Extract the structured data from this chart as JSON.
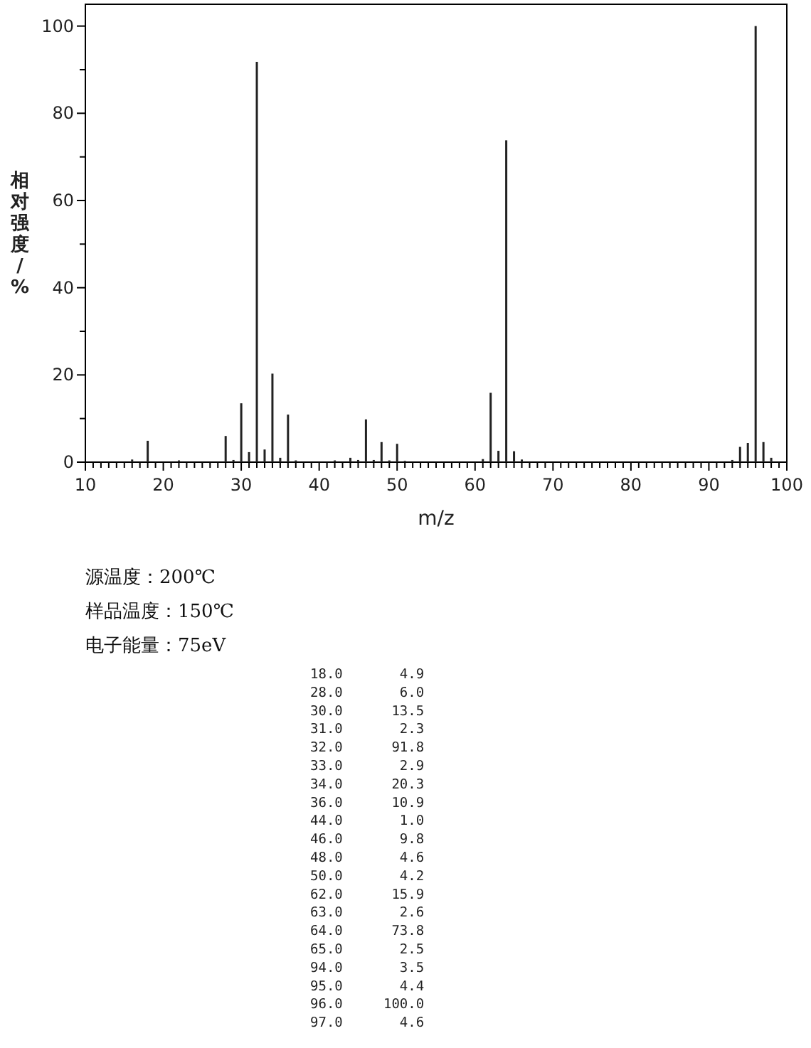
{
  "chart_data": [
    {
      "type": "bar",
      "xlabel": "m/z",
      "ylabel": "相对强度/%",
      "color": "#222222",
      "x": [
        16,
        18,
        22,
        28,
        29,
        30,
        31,
        32,
        33,
        34,
        35,
        36,
        37,
        42,
        44,
        45,
        46,
        47,
        48,
        49,
        50,
        51,
        61,
        62,
        63,
        64,
        65,
        66,
        93,
        94,
        95,
        96,
        97,
        98
      ],
      "values": [
        0.6,
        4.9,
        0.4,
        6.0,
        0.5,
        13.5,
        2.3,
        91.8,
        2.9,
        20.3,
        1.0,
        10.9,
        0.4,
        0.4,
        1.0,
        0.5,
        9.8,
        0.5,
        4.6,
        0.4,
        4.2,
        0.3,
        0.7,
        15.9,
        2.6,
        73.8,
        2.5,
        0.6,
        0.5,
        3.5,
        4.4,
        100.0,
        4.6,
        1.0
      ],
      "xlim": [
        10,
        100
      ],
      "ylim": [
        0,
        105
      ],
      "xticks": [
        10,
        {
          "value": 11,
          "label": null
        },
        {
          "value": 12,
          "label": null
        },
        {
          "value": 13,
          "label": null
        },
        {
          "value": 14,
          "label": null
        },
        {
          "value": 15,
          "label": null
        },
        {
          "value": 16,
          "label": null
        },
        {
          "value": 17,
          "label": null
        },
        {
          "value": 18,
          "label": null
        },
        {
          "value": 19,
          "label": null
        },
        20,
        {
          "value": 21,
          "label": null
        },
        {
          "value": 22,
          "label": null
        },
        {
          "value": 23,
          "label": null
        },
        {
          "value": 24,
          "label": null
        },
        {
          "value": 25,
          "label": null
        },
        {
          "value": 26,
          "label": null
        },
        {
          "value": 27,
          "label": null
        },
        {
          "value": 28,
          "label": null
        },
        {
          "value": 29,
          "label": null
        },
        30,
        {
          "value": 31,
          "label": null
        },
        {
          "value": 32,
          "label": null
        },
        {
          "value": 33,
          "label": null
        },
        {
          "value": 34,
          "label": null
        },
        {
          "value": 35,
          "label": null
        },
        {
          "value": 36,
          "label": null
        },
        {
          "value": 37,
          "label": null
        },
        {
          "value": 38,
          "label": null
        },
        {
          "value": 39,
          "label": null
        },
        40,
        {
          "value": 41,
          "label": null
        },
        {
          "value": 42,
          "label": null
        },
        {
          "value": 43,
          "label": null
        },
        {
          "value": 44,
          "label": null
        },
        {
          "value": 45,
          "label": null
        },
        {
          "value": 46,
          "label": null
        },
        {
          "value": 47,
          "label": null
        },
        {
          "value": 48,
          "label": null
        },
        {
          "value": 49,
          "label": null
        },
        50,
        {
          "value": 51,
          "label": null
        },
        {
          "value": 52,
          "label": null
        },
        {
          "value": 53,
          "label": null
        },
        {
          "value": 54,
          "label": null
        },
        {
          "value": 55,
          "label": null
        },
        {
          "value": 56,
          "label": null
        },
        {
          "value": 57,
          "label": null
        },
        {
          "value": 58,
          "label": null
        },
        {
          "value": 59,
          "label": null
        },
        60,
        {
          "value": 61,
          "label": null
        },
        {
          "value": 62,
          "label": null
        },
        {
          "value": 63,
          "label": null
        },
        {
          "value": 64,
          "label": null
        },
        {
          "value": 65,
          "label": null
        },
        {
          "value": 66,
          "label": null
        },
        {
          "value": 67,
          "label": null
        },
        {
          "value": 68,
          "label": null
        },
        {
          "value": 69,
          "label": null
        },
        70,
        {
          "value": 71,
          "label": null
        },
        {
          "value": 72,
          "label": null
        },
        {
          "value": 73,
          "label": null
        },
        {
          "value": 74,
          "label": null
        },
        {
          "value": 75,
          "label": null
        },
        {
          "value": 76,
          "label": null
        },
        {
          "value": 77,
          "label": null
        },
        {
          "value": 78,
          "label": null
        },
        {
          "value": 79,
          "label": null
        },
        80,
        {
          "value": 81,
          "label": null
        },
        {
          "value": 82,
          "label": null
        },
        {
          "value": 83,
          "label": null
        },
        {
          "value": 84,
          "label": null
        },
        {
          "value": 85,
          "label": null
        },
        {
          "value": 86,
          "label": null
        },
        {
          "value": 87,
          "label": null
        },
        {
          "value": 88,
          "label": null
        },
        {
          "value": 89,
          "label": null
        },
        90,
        {
          "value": 91,
          "label": null
        },
        {
          "value": 92,
          "label": null
        },
        {
          "value": 93,
          "label": null
        },
        {
          "value": 94,
          "label": null
        },
        {
          "value": 95,
          "label": null
        },
        {
          "value": 96,
          "label": null
        },
        {
          "value": 97,
          "label": null
        },
        {
          "value": 98,
          "label": null
        },
        {
          "value": 99,
          "label": null
        },
        100
      ],
      "yticks": [
        0,
        {
          "value": 10,
          "label": null
        },
        20,
        {
          "value": 30,
          "label": null
        },
        40,
        {
          "value": 50,
          "label": null
        },
        60,
        {
          "value": 70,
          "label": null
        },
        80,
        {
          "value": 90,
          "label": null
        },
        100
      ],
      "annotations": [
        "源温度：200℃",
        "样品温度：150℃",
        "电子能量：75eV"
      ]
    },
    {
      "type": "other",
      "annotations": [
        "18.0       4.9",
        "28.0       6.0",
        "30.0      13.5",
        "31.0       2.3",
        "32.0      91.8",
        "33.0       2.9",
        "34.0      20.3",
        "36.0      10.9",
        "44.0       1.0",
        "46.0       9.8",
        "48.0       4.6",
        "50.0       4.2",
        "62.0      15.9",
        "63.0       2.6",
        "64.0      73.8",
        "65.0       2.5",
        "94.0       3.5",
        "95.0       4.4",
        "96.0     100.0",
        "97.0       4.6"
      ]
    }
  ]
}
